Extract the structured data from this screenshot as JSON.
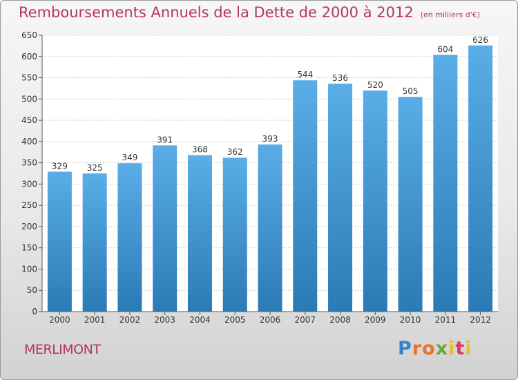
{
  "title": "Remboursements Annuels de la Dette de 2000 à 2012",
  "unit": "(en milliers d'€)",
  "commune": "MERLIMONT",
  "logo": {
    "text": "Proxiti",
    "colors": [
      "#2f86c8",
      "#e9732b",
      "#67ad2f",
      "#e4c12a",
      "#d63c6a"
    ]
  },
  "chart_data": {
    "type": "bar",
    "title": "Remboursements Annuels de la Dette de 2000 à 2012",
    "subtitle": "(en milliers d'€)",
    "categories": [
      "2000",
      "2001",
      "2002",
      "2003",
      "2004",
      "2005",
      "2006",
      "2007",
      "2008",
      "2009",
      "2010",
      "2011",
      "2012"
    ],
    "values": [
      329,
      325,
      349,
      391,
      368,
      362,
      393,
      544,
      536,
      520,
      505,
      604,
      626
    ],
    "ylim": [
      0,
      650
    ],
    "yticks": [
      0,
      50,
      100,
      150,
      200,
      250,
      300,
      350,
      400,
      450,
      500,
      550,
      600,
      650
    ],
    "grid": true,
    "bar_color_top": "#5aade6",
    "bar_color_bottom": "#2a7ab6"
  }
}
